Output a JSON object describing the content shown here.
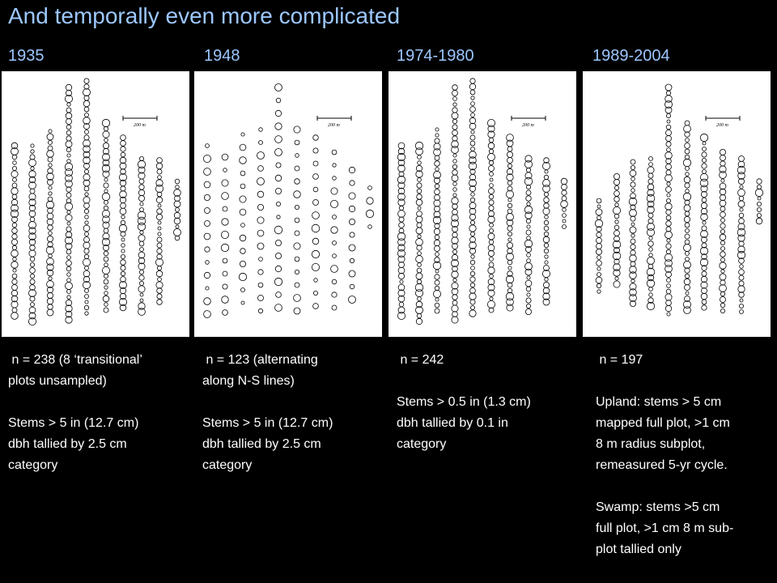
{
  "title": "And temporally even more complicated",
  "panels": [
    {
      "year": "1935",
      "scale_label": "200 m",
      "description": " n = 238 (8 ‘transitional’\nplots unsampled)\n\nStems > 5 in (12.7 cm)\ndbh tallied by 2.5 cm\ncategory"
    },
    {
      "year": "1948",
      "scale_label": "200 m",
      "description": " n = 123 (alternating\nalong N-S lines)\n\nStems > 5 in (12.7 cm)\ndbh tallied by 2.5 cm\ncategory"
    },
    {
      "year": "1974-1980",
      "scale_label": "200 m",
      "description": " n = 242\n\nStems > 0.5 in (1.3 cm)\ndbh tallied by 0.1 in\ncategory"
    },
    {
      "year": "1989-2004",
      "scale_label": "200 m",
      "description": " n = 197\n\nUpland: stems > 5 cm\nmapped full plot, >1 cm\n8 m radius subplot,\nremeasured 5-yr cycle.\n\nSwamp: stems >5 cm\nfull plot, >1 cm 8 m sub-\nplot tallied only"
    }
  ]
}
